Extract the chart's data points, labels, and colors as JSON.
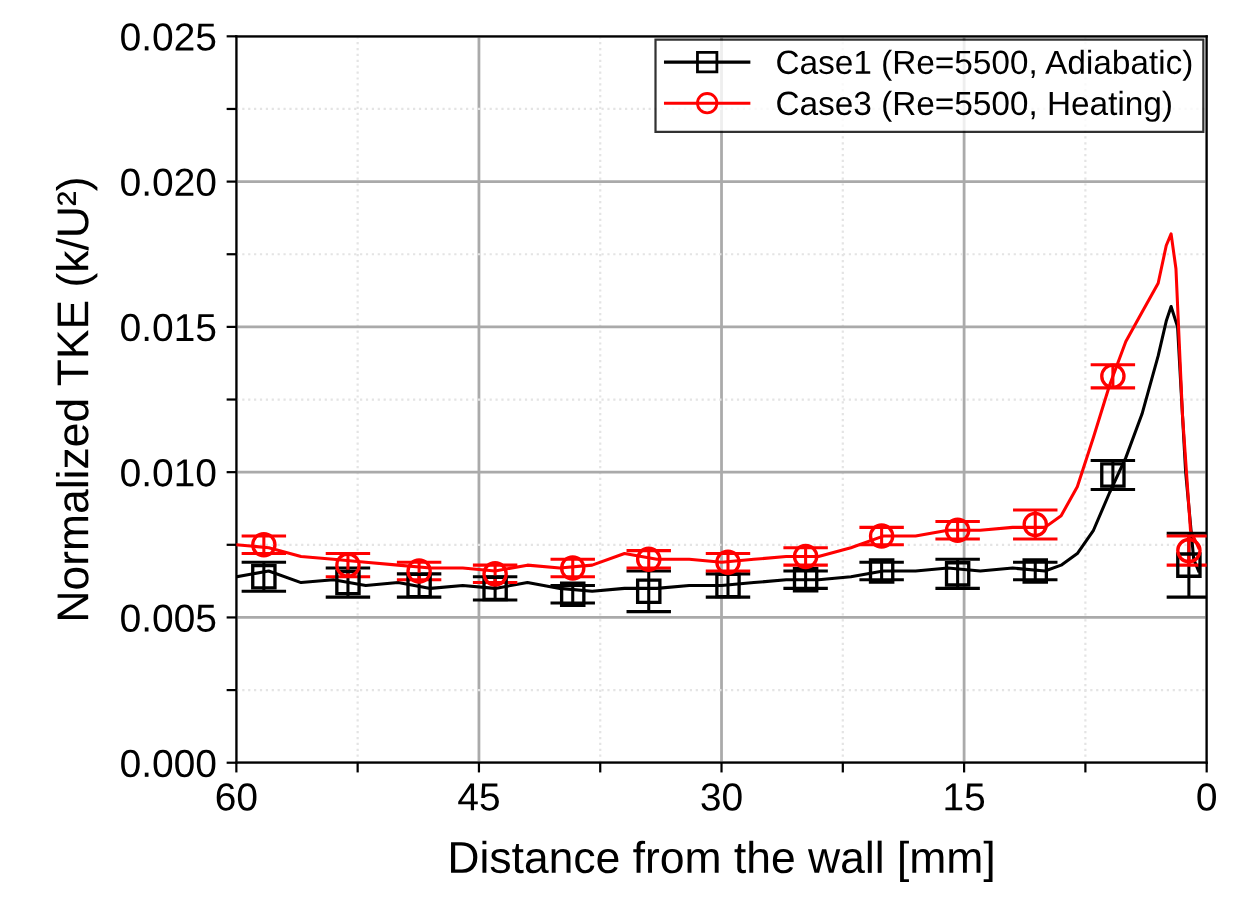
{
  "chart_data": {
    "type": "line",
    "xlabel": "Distance from the wall [mm]",
    "ylabel": "Normalized TKE (k/U²)",
    "xlim": [
      60,
      0
    ],
    "ylim": [
      0,
      0.025
    ],
    "xticks": [
      60,
      {
        "value": 52.5,
        "label": null
      },
      45,
      {
        "value": 37.5,
        "label": null
      },
      30,
      {
        "value": 22.5,
        "label": null
      },
      15,
      {
        "value": 7.5,
        "label": null
      },
      0
    ],
    "yticks": [
      {
        "value": 0,
        "label": "0.000"
      },
      {
        "value": 0.0025,
        "label": null
      },
      {
        "value": 0.005,
        "label": "0.005"
      },
      {
        "value": 0.0075,
        "label": null
      },
      {
        "value": 0.01,
        "label": "0.010"
      },
      {
        "value": 0.0125,
        "label": null
      },
      {
        "value": 0.015,
        "label": "0.015"
      },
      {
        "value": 0.0175,
        "label": null
      },
      {
        "value": 0.02,
        "label": "0.020"
      },
      {
        "value": 0.0225,
        "label": null
      },
      {
        "value": 0.025,
        "label": "0.025"
      }
    ],
    "grid": true,
    "legend": "top right",
    "series": [
      {
        "name": "Case1 (Re=5500, Adiabatic)",
        "color": "#000000",
        "marker": "none",
        "x": [
          60,
          58,
          56,
          54,
          52,
          50,
          48,
          46,
          44,
          42,
          40,
          38,
          36,
          34,
          32,
          30,
          28,
          26,
          24,
          22,
          20,
          18,
          16,
          14,
          12,
          10,
          9,
          8,
          7,
          6,
          5,
          4,
          3,
          2.5,
          2.2,
          1.8,
          1.3,
          0.8,
          0.5
        ],
        "values": [
          0.0064,
          0.0066,
          0.0062,
          0.0063,
          0.0061,
          0.0062,
          0.006,
          0.0061,
          0.006,
          0.0062,
          0.006,
          0.0059,
          0.006,
          0.006,
          0.0061,
          0.0061,
          0.0062,
          0.0063,
          0.0063,
          0.0064,
          0.0066,
          0.0066,
          0.0067,
          0.0066,
          0.0067,
          0.0066,
          0.0068,
          0.0072,
          0.008,
          0.0093,
          0.0105,
          0.012,
          0.014,
          0.0152,
          0.0157,
          0.015,
          0.01,
          0.007,
          0.0066
        ]
      },
      {
        "type": "scatter",
        "color": "#000000",
        "marker": "square",
        "x": [
          58.3,
          53.1,
          48.7,
          44.0,
          39.2,
          34.5,
          29.6,
          24.8,
          20.1,
          15.4,
          10.6,
          5.8,
          1.1
        ],
        "values": [
          0.0064,
          0.0062,
          0.0061,
          0.006,
          0.0058,
          0.0059,
          0.0061,
          0.0063,
          0.0066,
          0.0065,
          0.0066,
          0.0099,
          0.0068
        ],
        "errors": [
          0.0005,
          0.0005,
          0.0004,
          0.0004,
          0.0003,
          0.0007,
          0.0004,
          0.0003,
          0.0003,
          0.0005,
          0.0003,
          0.0005,
          0.0011
        ]
      },
      {
        "name": "Case3 (Re=5500, Heating)",
        "color": "#ff0000",
        "marker": "none",
        "x": [
          60,
          58,
          56,
          54,
          52,
          50,
          48,
          46,
          44,
          42,
          40,
          38,
          36,
          34,
          32,
          30,
          28,
          26,
          24,
          22,
          20,
          18,
          16,
          14,
          12,
          10,
          9,
          8,
          7,
          6,
          5,
          4,
          3,
          2.5,
          2.2,
          1.9,
          1.5,
          1.0,
          0.5
        ],
        "values": [
          0.0075,
          0.0074,
          0.0071,
          0.007,
          0.0069,
          0.0068,
          0.0067,
          0.0067,
          0.0066,
          0.0068,
          0.0067,
          0.0068,
          0.0072,
          0.007,
          0.007,
          0.0069,
          0.007,
          0.0071,
          0.0071,
          0.0074,
          0.0078,
          0.0078,
          0.008,
          0.008,
          0.0081,
          0.0081,
          0.0085,
          0.0095,
          0.0112,
          0.013,
          0.0145,
          0.0155,
          0.0165,
          0.0178,
          0.0182,
          0.017,
          0.012,
          0.008,
          0.0074
        ]
      },
      {
        "type": "scatter",
        "color": "#ff0000",
        "marker": "circle",
        "x": [
          58.3,
          53.1,
          48.7,
          44.0,
          39.2,
          34.5,
          29.6,
          24.8,
          20.1,
          15.4,
          10.6,
          5.8,
          1.1
        ],
        "values": [
          0.0075,
          0.0068,
          0.0066,
          0.0065,
          0.0067,
          0.007,
          0.0069,
          0.0071,
          0.0078,
          0.008,
          0.0082,
          0.0133,
          0.0073
        ],
        "errors": [
          0.0003,
          0.0004,
          0.0003,
          0.0003,
          0.0003,
          0.0003,
          0.0003,
          0.0003,
          0.0003,
          0.0003,
          0.0005,
          0.0004,
          0.0005
        ]
      }
    ]
  }
}
